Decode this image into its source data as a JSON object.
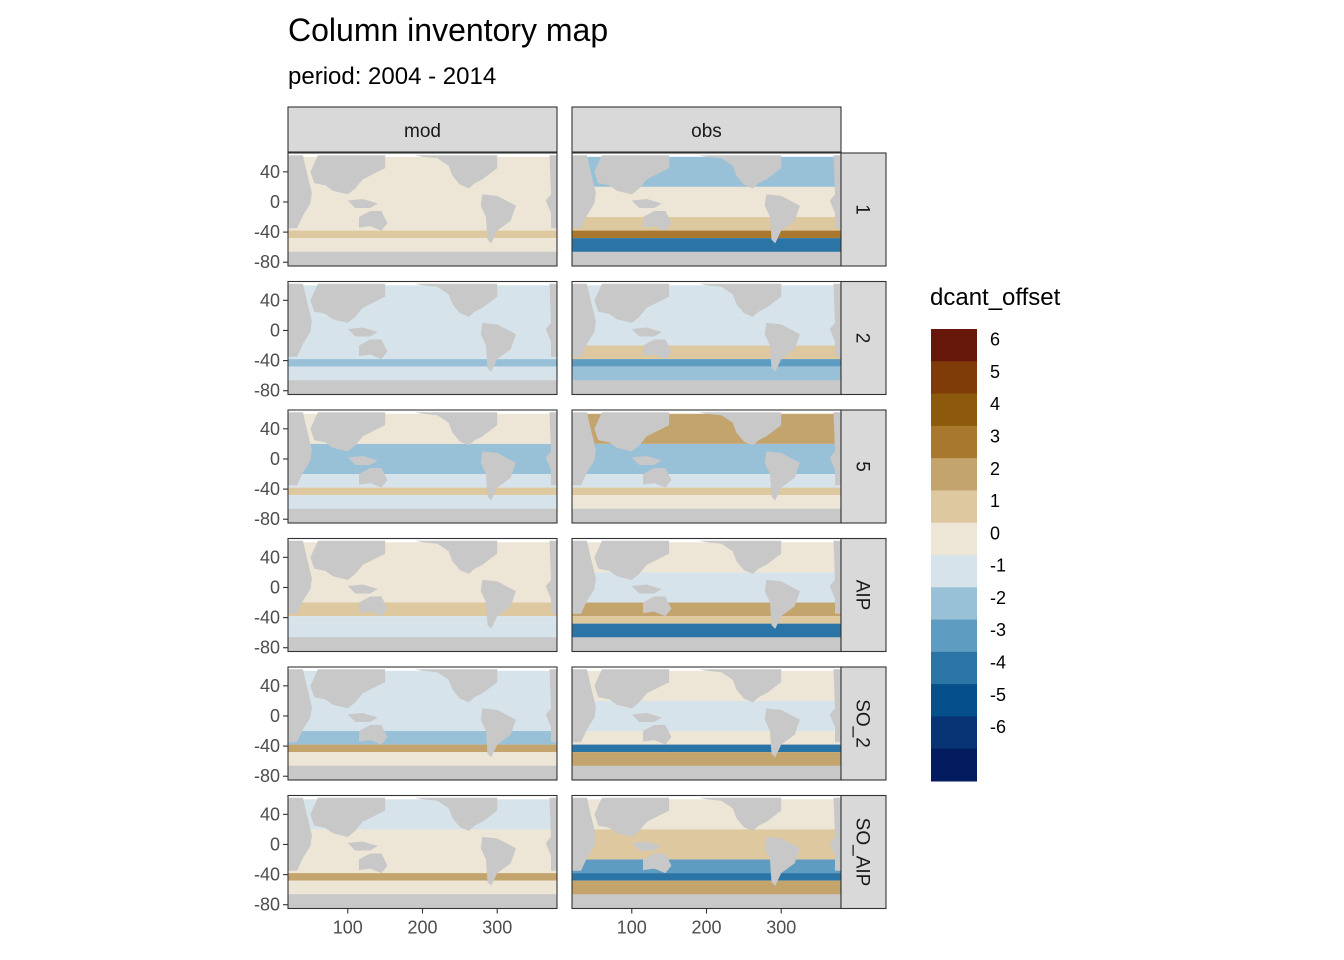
{
  "chart_data": {
    "type": "heatmap",
    "title": "Column inventory map",
    "subtitle": "period: 2004 - 2014",
    "xlabel": "",
    "ylabel": "",
    "facet_columns": [
      "mod",
      "obs"
    ],
    "facet_rows": [
      "1",
      "2",
      "5",
      "AIP",
      "SO_2",
      "SO_AIP"
    ],
    "x_ticks": [
      "100",
      "200",
      "300"
    ],
    "x_tick_values": [
      100,
      200,
      300
    ],
    "xlim": [
      20,
      380
    ],
    "y_ticks": [
      "40",
      "0",
      "-40",
      "-80"
    ],
    "y_tick_values": [
      40,
      0,
      -40,
      -80
    ],
    "ylim": [
      -85,
      65
    ],
    "land_color": "#c8c8c8",
    "panel_bg": "#ffffff",
    "legend": {
      "title": "dcant_offset",
      "placement": "right",
      "labels": [
        "6",
        "5",
        "4",
        "3",
        "2",
        "1",
        "0",
        "-1",
        "-2",
        "-3",
        "-4",
        "-5",
        "-6"
      ],
      "bins": [
        {
          "lo": 6,
          "hi": 7,
          "color": "#67170a"
        },
        {
          "lo": 5,
          "hi": 6,
          "color": "#7f3b08"
        },
        {
          "lo": 4,
          "hi": 5,
          "color": "#8c5a0a"
        },
        {
          "lo": 3,
          "hi": 4,
          "color": "#a9782f"
        },
        {
          "lo": 2,
          "hi": 3,
          "color": "#c4a46d"
        },
        {
          "lo": 1,
          "hi": 2,
          "color": "#ddc8a0"
        },
        {
          "lo": 0,
          "hi": 1,
          "color": "#ede5d6"
        },
        {
          "lo": -1,
          "hi": 0,
          "color": "#d6e3ea"
        },
        {
          "lo": -2,
          "hi": -1,
          "color": "#98c1d8"
        },
        {
          "lo": -3,
          "hi": -2,
          "color": "#5f9cc2"
        },
        {
          "lo": -4,
          "hi": -3,
          "color": "#2b74a6"
        },
        {
          "lo": -5,
          "hi": -4,
          "color": "#05508a"
        },
        {
          "lo": -6,
          "hi": -5,
          "color": "#083374"
        },
        {
          "lo": -7,
          "hi": -6,
          "color": "#031b5f"
        }
      ]
    },
    "panels": [
      {
        "row": "1",
        "col": "mod",
        "bands": [
          {
            "lat": [
              20,
              60
            ],
            "value": 0.5
          },
          {
            "lat": [
              -20,
              20
            ],
            "value": 0.5
          },
          {
            "lat": [
              -38,
              -20
            ],
            "value": 0.5
          },
          {
            "lat": [
              -48,
              -38
            ],
            "value": 1.5
          },
          {
            "lat": [
              -70,
              -48
            ],
            "value": 0.5
          }
        ]
      },
      {
        "row": "1",
        "col": "obs",
        "bands": [
          {
            "lat": [
              20,
              60
            ],
            "value": -1.5
          },
          {
            "lat": [
              -20,
              20
            ],
            "value": 0.5
          },
          {
            "lat": [
              -38,
              -20
            ],
            "value": 1.5
          },
          {
            "lat": [
              -48,
              -38
            ],
            "value": 3.5
          },
          {
            "lat": [
              -70,
              -48
            ],
            "value": -3.5
          }
        ]
      },
      {
        "row": "2",
        "col": "mod",
        "bands": [
          {
            "lat": [
              20,
              60
            ],
            "value": -0.5
          },
          {
            "lat": [
              -20,
              20
            ],
            "value": -0.5
          },
          {
            "lat": [
              -38,
              -20
            ],
            "value": -0.5
          },
          {
            "lat": [
              -48,
              -38
            ],
            "value": -1.5
          },
          {
            "lat": [
              -70,
              -48
            ],
            "value": -0.5
          }
        ]
      },
      {
        "row": "2",
        "col": "obs",
        "bands": [
          {
            "lat": [
              20,
              60
            ],
            "value": -0.5
          },
          {
            "lat": [
              -20,
              20
            ],
            "value": -0.5
          },
          {
            "lat": [
              -38,
              -20
            ],
            "value": 1.5
          },
          {
            "lat": [
              -48,
              -38
            ],
            "value": -2.5
          },
          {
            "lat": [
              -70,
              -48
            ],
            "value": -1.5
          }
        ]
      },
      {
        "row": "5",
        "col": "mod",
        "bands": [
          {
            "lat": [
              20,
              60
            ],
            "value": 0.5
          },
          {
            "lat": [
              -20,
              20
            ],
            "value": -1.5
          },
          {
            "lat": [
              -38,
              -20
            ],
            "value": -0.5
          },
          {
            "lat": [
              -48,
              -38
            ],
            "value": 1.5
          },
          {
            "lat": [
              -70,
              -48
            ],
            "value": -0.5
          }
        ]
      },
      {
        "row": "5",
        "col": "obs",
        "bands": [
          {
            "lat": [
              20,
              60
            ],
            "value": 2.5
          },
          {
            "lat": [
              -20,
              20
            ],
            "value": -1.5
          },
          {
            "lat": [
              -38,
              -20
            ],
            "value": -0.5
          },
          {
            "lat": [
              -48,
              -38
            ],
            "value": 1.5
          },
          {
            "lat": [
              -70,
              -48
            ],
            "value": 0.5
          }
        ]
      },
      {
        "row": "AIP",
        "col": "mod",
        "bands": [
          {
            "lat": [
              20,
              60
            ],
            "value": 0.5
          },
          {
            "lat": [
              -20,
              20
            ],
            "value": 0.5
          },
          {
            "lat": [
              -38,
              -20
            ],
            "value": 1.5
          },
          {
            "lat": [
              -48,
              -38
            ],
            "value": -0.5
          },
          {
            "lat": [
              -70,
              -48
            ],
            "value": -0.5
          }
        ]
      },
      {
        "row": "AIP",
        "col": "obs",
        "bands": [
          {
            "lat": [
              20,
              60
            ],
            "value": 0.5
          },
          {
            "lat": [
              -20,
              20
            ],
            "value": -0.5
          },
          {
            "lat": [
              -38,
              -20
            ],
            "value": 2.5
          },
          {
            "lat": [
              -48,
              -38
            ],
            "value": 1.5
          },
          {
            "lat": [
              -70,
              -48
            ],
            "value": -3.5
          }
        ]
      },
      {
        "row": "SO_2",
        "col": "mod",
        "bands": [
          {
            "lat": [
              20,
              60
            ],
            "value": -0.5
          },
          {
            "lat": [
              -20,
              20
            ],
            "value": -0.5
          },
          {
            "lat": [
              -38,
              -20
            ],
            "value": -1.5
          },
          {
            "lat": [
              -48,
              -38
            ],
            "value": 2.5
          },
          {
            "lat": [
              -70,
              -48
            ],
            "value": 0.5
          }
        ]
      },
      {
        "row": "SO_2",
        "col": "obs",
        "bands": [
          {
            "lat": [
              20,
              60
            ],
            "value": 0.5
          },
          {
            "lat": [
              -20,
              20
            ],
            "value": -0.5
          },
          {
            "lat": [
              -38,
              -20
            ],
            "value": 0.5
          },
          {
            "lat": [
              -48,
              -38
            ],
            "value": -3.5
          },
          {
            "lat": [
              -70,
              -48
            ],
            "value": 2.5
          }
        ]
      },
      {
        "row": "SO_AIP",
        "col": "mod",
        "bands": [
          {
            "lat": [
              20,
              60
            ],
            "value": -0.5
          },
          {
            "lat": [
              -20,
              20
            ],
            "value": 0.5
          },
          {
            "lat": [
              -38,
              -20
            ],
            "value": 0.5
          },
          {
            "lat": [
              -48,
              -38
            ],
            "value": 2.5
          },
          {
            "lat": [
              -70,
              -48
            ],
            "value": 0.5
          }
        ]
      },
      {
        "row": "SO_AIP",
        "col": "obs",
        "bands": [
          {
            "lat": [
              20,
              60
            ],
            "value": 0.5
          },
          {
            "lat": [
              -20,
              20
            ],
            "value": 1.5
          },
          {
            "lat": [
              -38,
              -20
            ],
            "value": -2.5
          },
          {
            "lat": [
              -48,
              -38
            ],
            "value": -3.5
          },
          {
            "lat": [
              -70,
              -48
            ],
            "value": 2.5
          }
        ]
      }
    ]
  }
}
